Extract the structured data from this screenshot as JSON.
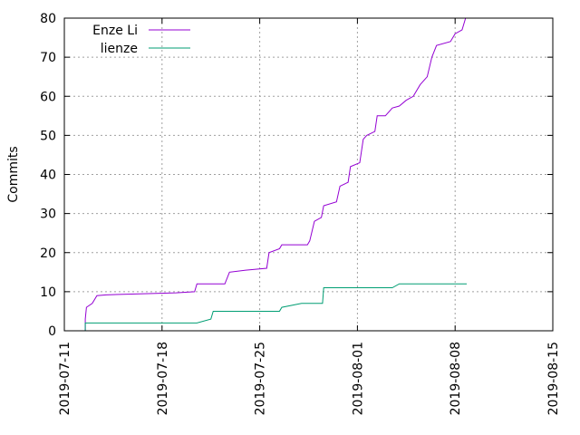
{
  "chart_data": {
    "type": "line",
    "title": "",
    "xlabel": "",
    "ylabel": "Commits",
    "xlim": [
      "2019-07-11",
      "2019-08-15"
    ],
    "ylim": [
      0,
      80
    ],
    "x_ticks": [
      "2019-07-11",
      "2019-07-18",
      "2019-07-25",
      "2019-08-01",
      "2019-08-08",
      "2019-08-15"
    ],
    "y_ticks": [
      0,
      10,
      20,
      30,
      40,
      50,
      60,
      70,
      80
    ],
    "grid": true,
    "legend_position": "top-left",
    "series": [
      {
        "name": "Enze Li",
        "color": "#9400d3",
        "points": [
          [
            "2019-07-12T12:00",
            0
          ],
          [
            "2019-07-12T12:00",
            3
          ],
          [
            "2019-07-12T14:00",
            6
          ],
          [
            "2019-07-13T00:00",
            7
          ],
          [
            "2019-07-13T08:00",
            9
          ],
          [
            "2019-07-14T00:00",
            9.2
          ],
          [
            "2019-07-17T00:00",
            9.5
          ],
          [
            "2019-07-19T00:00",
            9.7
          ],
          [
            "2019-07-20T08:00",
            10
          ],
          [
            "2019-07-20T12:00",
            12
          ],
          [
            "2019-07-22T12:00",
            12
          ],
          [
            "2019-07-22T20:00",
            15
          ],
          [
            "2019-07-24T00:00",
            15.5
          ],
          [
            "2019-07-25T12:00",
            16
          ],
          [
            "2019-07-25T16:00",
            20
          ],
          [
            "2019-07-26T10:00",
            21
          ],
          [
            "2019-07-26T14:00",
            22
          ],
          [
            "2019-07-28T10:00",
            22
          ],
          [
            "2019-07-28T14:00",
            23
          ],
          [
            "2019-07-28T22:00",
            28
          ],
          [
            "2019-07-29T10:00",
            29
          ],
          [
            "2019-07-29T14:00",
            32
          ],
          [
            "2019-07-30T12:00",
            33
          ],
          [
            "2019-07-30T18:00",
            37
          ],
          [
            "2019-07-31T08:00",
            38
          ],
          [
            "2019-07-31T12:00",
            42
          ],
          [
            "2019-08-01T04:00",
            43
          ],
          [
            "2019-08-01T10:00",
            49
          ],
          [
            "2019-08-01T16:00",
            50
          ],
          [
            "2019-08-02T06:00",
            51
          ],
          [
            "2019-08-02T10:00",
            55
          ],
          [
            "2019-08-03T00:00",
            55
          ],
          [
            "2019-08-03T12:00",
            57
          ],
          [
            "2019-08-04T00:00",
            57.5
          ],
          [
            "2019-08-04T12:00",
            59
          ],
          [
            "2019-08-05T00:00",
            60
          ],
          [
            "2019-08-05T12:00",
            63
          ],
          [
            "2019-08-06T00:00",
            65
          ],
          [
            "2019-08-06T08:00",
            70
          ],
          [
            "2019-08-06T16:00",
            73
          ],
          [
            "2019-08-07T16:00",
            74
          ],
          [
            "2019-08-08T00:00",
            76
          ],
          [
            "2019-08-08T12:00",
            77
          ],
          [
            "2019-08-08T18:00",
            80
          ]
        ]
      },
      {
        "name": "lienze",
        "color": "#009e73",
        "points": [
          [
            "2019-07-12T12:00",
            0
          ],
          [
            "2019-07-12T12:00",
            2
          ],
          [
            "2019-07-20T12:00",
            2
          ],
          [
            "2019-07-21T12:00",
            3
          ],
          [
            "2019-07-21T16:00",
            5
          ],
          [
            "2019-07-26T10:00",
            5
          ],
          [
            "2019-07-26T14:00",
            6
          ],
          [
            "2019-07-28T00:00",
            7
          ],
          [
            "2019-07-29T12:00",
            7
          ],
          [
            "2019-07-29T14:00",
            11
          ],
          [
            "2019-08-03T12:00",
            11
          ],
          [
            "2019-08-04T00:00",
            12
          ],
          [
            "2019-08-08T20:00",
            12
          ]
        ]
      }
    ]
  }
}
